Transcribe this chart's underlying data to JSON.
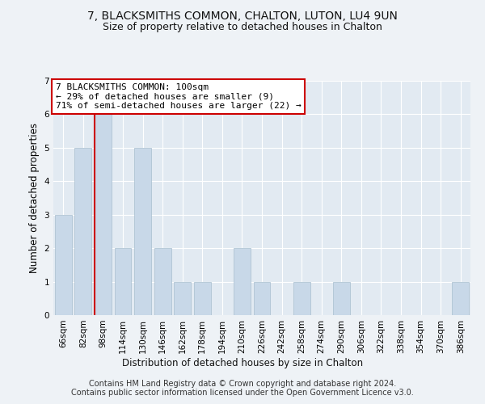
{
  "title": "7, BLACKSMITHS COMMON, CHALTON, LUTON, LU4 9UN",
  "subtitle": "Size of property relative to detached houses in Chalton",
  "xlabel": "Distribution of detached houses by size in Chalton",
  "ylabel": "Number of detached properties",
  "categories": [
    "66sqm",
    "82sqm",
    "98sqm",
    "114sqm",
    "130sqm",
    "146sqm",
    "162sqm",
    "178sqm",
    "194sqm",
    "210sqm",
    "226sqm",
    "242sqm",
    "258sqm",
    "274sqm",
    "290sqm",
    "306sqm",
    "322sqm",
    "338sqm",
    "354sqm",
    "370sqm",
    "386sqm"
  ],
  "values": [
    3,
    5,
    6,
    2,
    5,
    2,
    1,
    1,
    0,
    2,
    1,
    0,
    1,
    0,
    1,
    0,
    0,
    0,
    0,
    0,
    1
  ],
  "bar_color": "#c8d8e8",
  "bar_edge_color": "#a8bece",
  "ylim": [
    0,
    7
  ],
  "yticks": [
    0,
    1,
    2,
    3,
    4,
    5,
    6,
    7
  ],
  "annotation_title": "7 BLACKSMITHS COMMON: 100sqm",
  "annotation_line1": "← 29% of detached houses are smaller (9)",
  "annotation_line2": "71% of semi-detached houses are larger (22) →",
  "footer1": "Contains HM Land Registry data © Crown copyright and database right 2024.",
  "footer2": "Contains public sector information licensed under the Open Government Licence v3.0.",
  "bg_color": "#eef2f6",
  "plot_bg_color": "#e2eaf2",
  "grid_color": "#ffffff",
  "annotation_box_color": "#ffffff",
  "annotation_box_edge": "#cc0000",
  "vline_color": "#cc0000",
  "title_fontsize": 10,
  "subtitle_fontsize": 9,
  "axis_label_fontsize": 8.5,
  "tick_fontsize": 7.5,
  "annotation_fontsize": 8,
  "footer_fontsize": 7
}
